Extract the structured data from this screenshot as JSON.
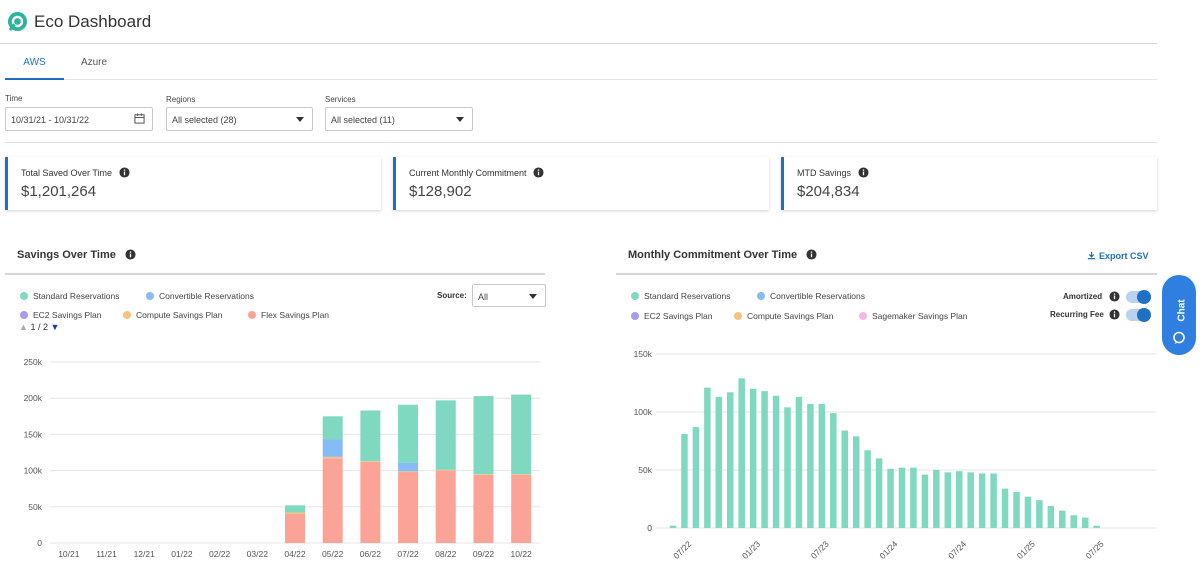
{
  "app": {
    "title": "Eco Dashboard",
    "logo_icon": "leaf-logo-icon"
  },
  "tabs": [
    {
      "label": "AWS",
      "active": true
    },
    {
      "label": "Azure",
      "active": false
    }
  ],
  "filters": {
    "time": {
      "label": "Time",
      "value": "10/31/21 - 10/31/22"
    },
    "regions": {
      "label": "Regions",
      "value": "All selected (28)"
    },
    "services": {
      "label": "Services",
      "value": "All selected (11)"
    }
  },
  "cards": [
    {
      "label": "Total Saved Over Time",
      "value": "$1,201,264"
    },
    {
      "label": "Current Monthly Commitment",
      "value": "$128,902"
    },
    {
      "label": "MTD Savings",
      "value": "$204,834"
    }
  ],
  "savings": {
    "title": "Savings Over Time",
    "source_label": "Source:",
    "source_value": "All",
    "pager": "1 / 2",
    "legend": [
      {
        "name": "Standard Reservations",
        "color": "#7fd9c0"
      },
      {
        "name": "Convertible Reservations",
        "color": "#86bcf5"
      },
      {
        "name": "EC2 Savings Plan",
        "color": "#a99af0"
      },
      {
        "name": "Compute Savings Plan",
        "color": "#f7c27d"
      },
      {
        "name": "Flex Savings Plan",
        "color": "#fba396"
      }
    ]
  },
  "commitment": {
    "title": "Monthly Commitment Over Time",
    "export_label": "Export CSV",
    "toggles": [
      {
        "label": "Amortized",
        "on": true
      },
      {
        "label": "Recurring Fee",
        "on": true
      }
    ],
    "legend": [
      {
        "name": "Standard Reservations",
        "color": "#7fd9c0"
      },
      {
        "name": "Convertible Reservations",
        "color": "#86bcf5"
      },
      {
        "name": "EC2 Savings Plan",
        "color": "#a99af0"
      },
      {
        "name": "Compute Savings Plan",
        "color": "#f7c27d"
      },
      {
        "name": "Sagemaker Savings Plan",
        "color": "#f3b6e6"
      }
    ]
  },
  "chat": {
    "label": "Chat"
  },
  "chart_data": [
    {
      "type": "bar",
      "stacked": true,
      "title": "Savings Over Time",
      "categories": [
        "10/21",
        "11/21",
        "12/21",
        "01/22",
        "02/22",
        "03/22",
        "04/22",
        "05/22",
        "06/22",
        "07/22",
        "08/22",
        "09/22",
        "10/22"
      ],
      "series": [
        {
          "name": "Flex Savings Plan",
          "color": "#fba396",
          "values": [
            0,
            0,
            0,
            0,
            0,
            0,
            40000,
            117000,
            112000,
            98000,
            100000,
            94000,
            94000
          ]
        },
        {
          "name": "Compute Savings Plan",
          "color": "#f7c27d",
          "values": [
            0,
            0,
            0,
            0,
            0,
            0,
            2000,
            2000,
            1000,
            1000,
            1000,
            1000,
            1000
          ]
        },
        {
          "name": "Convertible Reservations",
          "color": "#86bcf5",
          "values": [
            0,
            0,
            0,
            0,
            0,
            0,
            0,
            24000,
            0,
            12000,
            0,
            0,
            0
          ]
        },
        {
          "name": "Standard Reservations",
          "color": "#7fd9c0",
          "values": [
            0,
            0,
            0,
            0,
            0,
            0,
            10000,
            32000,
            70000,
            80000,
            96000,
            108000,
            110000
          ]
        }
      ],
      "ylim": [
        0,
        250000
      ],
      "yticks": [
        "250k",
        "200k",
        "150k",
        "100k",
        "50k",
        "0"
      ],
      "grid": true
    },
    {
      "type": "bar",
      "title": "Monthly Commitment Over Time",
      "x": [
        "06/22",
        "07/22",
        "08/22",
        "09/22",
        "10/22",
        "11/22",
        "12/22",
        "01/23",
        "02/23",
        "03/23",
        "04/23",
        "05/23",
        "06/23",
        "07/23",
        "08/23",
        "09/23",
        "10/23",
        "11/23",
        "12/23",
        "01/24",
        "02/24",
        "03/24",
        "04/24",
        "05/24",
        "06/24",
        "07/24",
        "08/24",
        "09/24",
        "10/24",
        "11/24",
        "12/24",
        "01/25",
        "02/25",
        "03/25",
        "04/25",
        "05/25",
        "06/25",
        "07/25"
      ],
      "xticks": [
        "07/22",
        "01/23",
        "07/23",
        "01/24",
        "07/24",
        "01/25",
        "07/25"
      ],
      "series": [
        {
          "name": "Standard Reservations",
          "color": "#7fd9c0",
          "values": [
            2000,
            81000,
            87000,
            121000,
            113000,
            117000,
            129000,
            120000,
            118000,
            114000,
            104000,
            113000,
            107000,
            107000,
            99000,
            84000,
            79000,
            67000,
            60000,
            51000,
            52000,
            52000,
            46000,
            50000,
            48000,
            49000,
            48000,
            47000,
            47000,
            34000,
            31000,
            27000,
            24000,
            19000,
            15000,
            11000,
            9000,
            2000
          ]
        }
      ],
      "ylim": [
        0,
        150000
      ],
      "yticks": [
        "150k",
        "100k",
        "50k",
        "0"
      ],
      "grid": true
    }
  ]
}
